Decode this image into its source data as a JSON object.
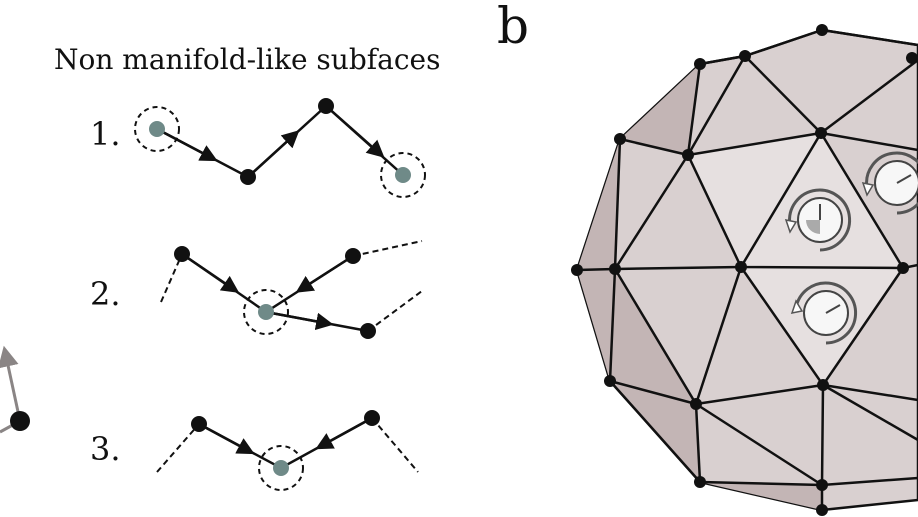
{
  "panel_label": "b",
  "heading": "Non manifold-like subfaces",
  "items": [
    {
      "number": "1."
    },
    {
      "number": "2."
    },
    {
      "number": "3."
    }
  ],
  "colors": {
    "vertex": "#111111",
    "highlight_vertex": "#6f8a88",
    "sphere_fill_light": "#ddd5d5",
    "sphere_fill_dark": "#bfb2b2",
    "edge": "#111111",
    "clock_face": "#f7f7f7"
  }
}
